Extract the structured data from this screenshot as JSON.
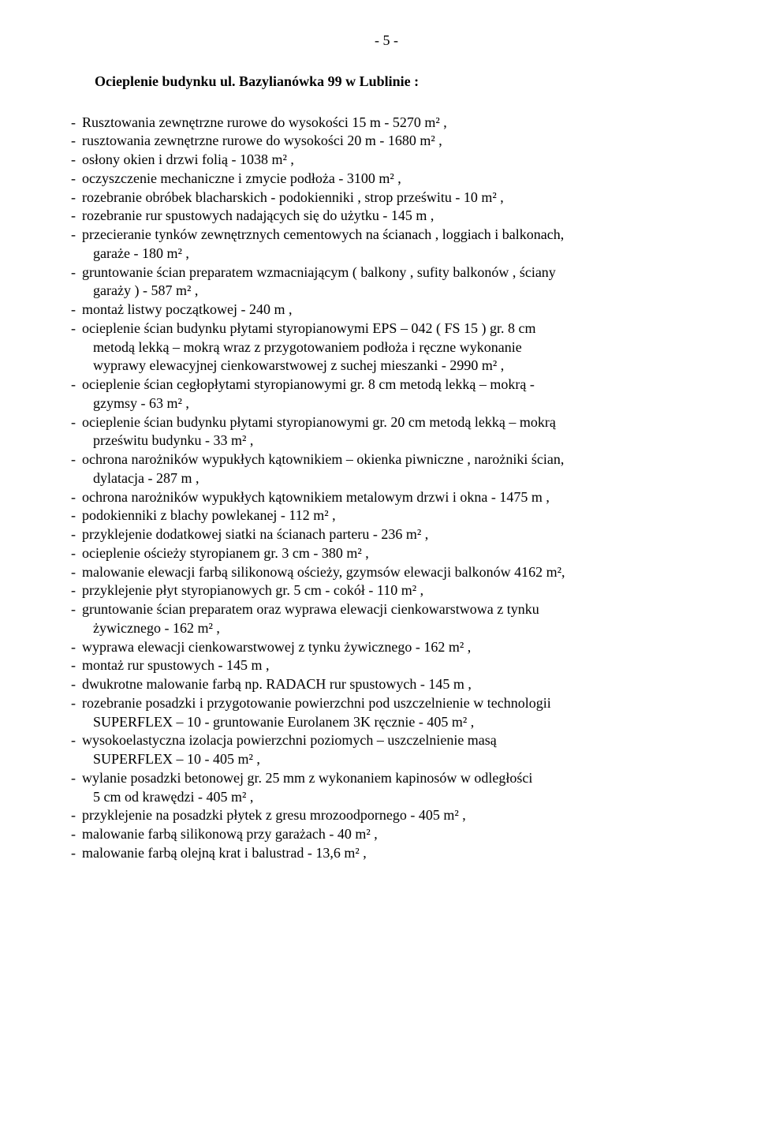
{
  "page_number": "-  5  -",
  "title": "Ocieplenie  budynku ul. Bazylianówka 99 w Lublinie :",
  "items": [
    {
      "text": "Rusztowania zewnętrzne rurowe do wysokości  15 m  -  5270 m² ,",
      "cont": []
    },
    {
      "text": "rusztowania zewnętrzne rurowe  do wysokości  20 m -  1680 m² ,",
      "cont": []
    },
    {
      "text": "osłony okien i drzwi folią   -  1038 m² ,",
      "cont": []
    },
    {
      "text": "oczyszczenie mechaniczne i zmycie podłoża  -  3100 m² ,",
      "cont": []
    },
    {
      "text": "rozebranie obróbek blacharskich  - podokienniki , strop prześwitu   -  10 m² ,",
      "cont": []
    },
    {
      "text": "rozebranie rur spustowych nadających się do użytku   -  145 m ,",
      "cont": []
    },
    {
      "text": "przecieranie tynków zewnętrznych cementowych na ścianach , loggiach i balkonach,",
      "cont": [
        "garaże   -  180 m² ,"
      ]
    },
    {
      "text": "gruntowanie ścian preparatem wzmacniającym ( balkony , sufity balkonów , ściany",
      "cont": [
        "garaży )   -  587 m² ,"
      ]
    },
    {
      "text": "montaż listwy początkowej    -   240 m ,",
      "cont": []
    },
    {
      "text": "ocieplenie ścian budynku płytami styropianowymi  EPS – 042 ( FS 15 ) gr. 8 cm",
      "cont": [
        "metodą lekką – mokrą  wraz z przygotowaniem podłoża i ręczne wykonanie",
        "wyprawy elewacyjnej cienkowarstwowej z suchej mieszanki   -  2990 m² ,"
      ]
    },
    {
      "text": "ocieplenie ścian  cegłopłytami styropianowymi gr. 8 cm metodą lekką – mokrą   -",
      "cont": [
        "gzymsy  -  63 m²  ,"
      ]
    },
    {
      "text": "ocieplenie ścian budynku płytami styropianowymi gr. 20 cm metodą lekką – mokrą",
      "cont": [
        "prześwitu budynku  -  33 m²  ,"
      ]
    },
    {
      "text": "ochrona narożników wypukłych kątownikiem – okienka piwniczne , narożniki ścian,",
      "cont": [
        "dylatacja  -  287 m ,"
      ]
    },
    {
      "text": "ochrona narożników wypukłych kątownikiem metalowym drzwi i okna   -  1475 m ,",
      "cont": []
    },
    {
      "text": "podokienniki z blachy powlekanej   -  112 m² ,",
      "cont": []
    },
    {
      "text": "przyklejenie dodatkowej siatki na ścianach parteru   -  236 m² ,",
      "cont": []
    },
    {
      "text": "ocieplenie ościeży styropianem gr. 3 cm    -  380 m² ,",
      "cont": []
    },
    {
      "text": "malowanie elewacji farbą silikonową ościeży, gzymsów  elewacji balkonów 4162 m²,",
      "cont": []
    },
    {
      "text": "przyklejenie płyt styropianowych gr. 5 cm   - cokół  -  110 m² ,",
      "cont": []
    },
    {
      "text": "gruntowanie ścian preparatem oraz wyprawa elewacji cienkowarstwowa z tynku",
      "cont": [
        "żywicznego   -  162 m²  ,"
      ]
    },
    {
      "text": "wyprawa elewacji cienkowarstwowej z tynku żywicznego  -  162 m²  ,",
      "cont": []
    },
    {
      "text": "montaż rur spustowych   -  145 m ,",
      "cont": []
    },
    {
      "text": "dwukrotne malowanie farbą np. RADACH rur spustowych    -  145 m ,",
      "cont": []
    },
    {
      "text": "rozebranie  posadzki  i przygotowanie powierzchni pod uszczelnienie w technologii",
      "cont": [
        "SUPERFLEX – 10   - gruntowanie Eurolanem 3K ręcznie -  405 m² ,"
      ]
    },
    {
      "text": "wysokoelastyczna  izolacja powierzchni poziomych – uszczelnienie masą",
      "cont": [
        "SUPERFLEX – 10    -   405 m² ,"
      ]
    },
    {
      "text": "wylanie posadzki betonowej  gr. 25 mm z wykonaniem kapinosów w odległości",
      "cont": [
        "5 cm  od krawędzi  -  405 m² ,"
      ]
    },
    {
      "text": "przyklejenie na posadzki  płytek z gresu mrozoodpornego   -  405 m² ,",
      "cont": []
    },
    {
      "text": "malowanie farbą silikonową przy garażach   -  40 m² ,",
      "cont": []
    },
    {
      "text": "malowanie farbą olejną krat i balustrad   -  13,6 m² ,",
      "cont": []
    }
  ]
}
